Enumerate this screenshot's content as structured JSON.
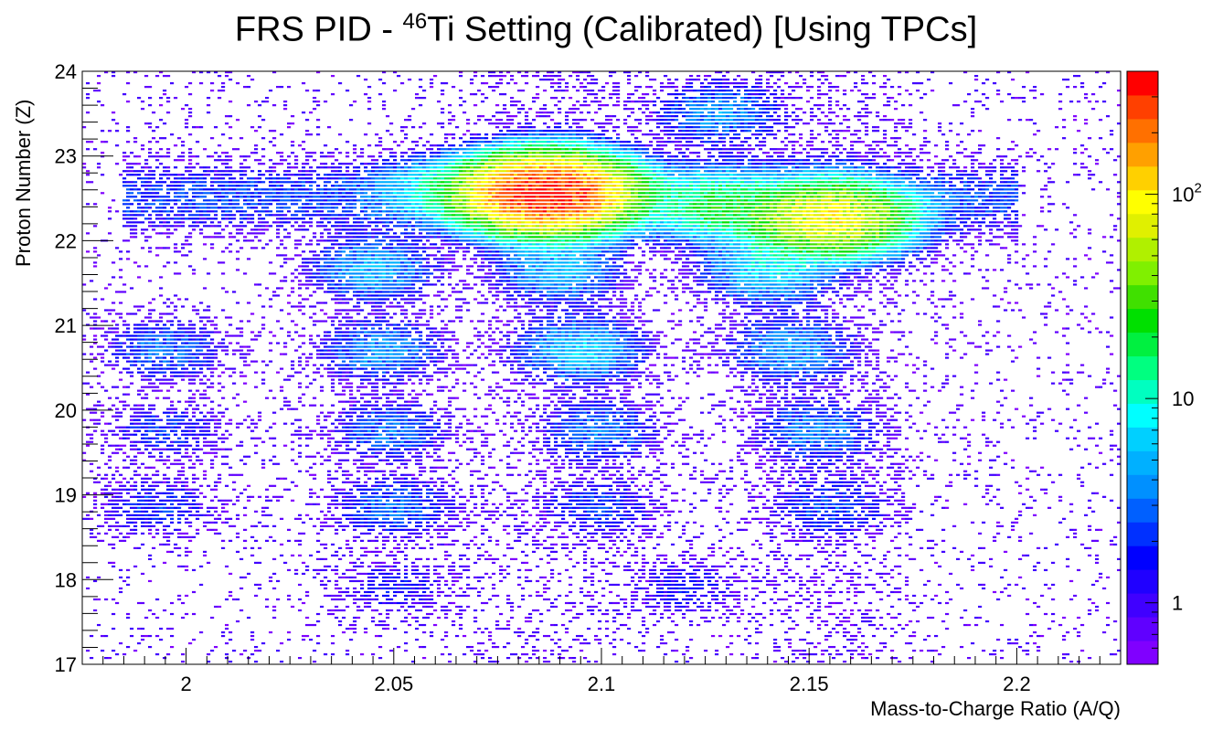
{
  "title": {
    "prefix": "FRS PID - ",
    "superscript": "46",
    "suffix": "Ti Setting (Calibrated) [Using TPCs]"
  },
  "chart_data": {
    "type": "heatmap",
    "xlabel": "Mass-to-Charge Ratio (A/Q)",
    "ylabel": "Proton Number (Z)",
    "xlim": [
      1.975,
      2.225
    ],
    "ylim": [
      17,
      24
    ],
    "x_ticks": [
      "2",
      "2.05",
      "2.1",
      "2.15",
      "2.2"
    ],
    "x_tick_values": [
      2.0,
      2.05,
      2.1,
      2.15,
      2.2
    ],
    "y_ticks": [
      "17",
      "18",
      "19",
      "20",
      "21",
      "22",
      "23",
      "24"
    ],
    "y_tick_values": [
      17,
      18,
      19,
      20,
      21,
      22,
      23,
      24
    ],
    "color_scale": {
      "type": "log",
      "min": 0.5,
      "max": 400,
      "ticks": [
        "1",
        "10",
        "10^2"
      ],
      "tick_values": [
        1,
        10,
        100
      ]
    },
    "palette": [
      "#8000ff",
      "#6000ff",
      "#4000ff",
      "#2000ff",
      "#0000ff",
      "#0030ff",
      "#0060ff",
      "#0090ff",
      "#00b0ff",
      "#00d0ff",
      "#00ffff",
      "#00ffc0",
      "#00ff80",
      "#00f040",
      "#00e000",
      "#40e000",
      "#80f000",
      "#b0f000",
      "#e0f000",
      "#ffff00",
      "#ffd000",
      "#ffa000",
      "#ff7000",
      "#ff4000",
      "#ff0000"
    ],
    "clusters": [
      {
        "aq": 2.087,
        "z": 22.55,
        "peak": 380
      },
      {
        "aq": 2.155,
        "z": 22.25,
        "peak": 90
      },
      {
        "aq": 2.128,
        "z": 22.4,
        "peak": 18
      },
      {
        "aq": 2.06,
        "z": 22.6,
        "peak": 6
      },
      {
        "aq": 2.128,
        "z": 23.5,
        "peak": 4
      },
      {
        "aq": 2.045,
        "z": 21.65,
        "peak": 5
      },
      {
        "aq": 2.09,
        "z": 21.65,
        "peak": 5
      },
      {
        "aq": 2.14,
        "z": 21.65,
        "peak": 7
      },
      {
        "aq": 1.995,
        "z": 20.7,
        "peak": 3
      },
      {
        "aq": 2.047,
        "z": 20.7,
        "peak": 4
      },
      {
        "aq": 2.095,
        "z": 20.7,
        "peak": 6
      },
      {
        "aq": 2.145,
        "z": 20.7,
        "peak": 4
      },
      {
        "aq": 1.995,
        "z": 19.75,
        "peak": 2
      },
      {
        "aq": 2.049,
        "z": 19.75,
        "peak": 3
      },
      {
        "aq": 2.1,
        "z": 19.75,
        "peak": 3
      },
      {
        "aq": 2.152,
        "z": 19.75,
        "peak": 3
      },
      {
        "aq": 1.993,
        "z": 18.85,
        "peak": 2
      },
      {
        "aq": 2.05,
        "z": 18.85,
        "peak": 3
      },
      {
        "aq": 2.1,
        "z": 18.85,
        "peak": 2
      },
      {
        "aq": 2.155,
        "z": 18.85,
        "peak": 2
      },
      {
        "aq": 2.05,
        "z": 17.9,
        "peak": 1.5
      },
      {
        "aq": 2.12,
        "z": 17.9,
        "peak": 1.5
      }
    ]
  }
}
